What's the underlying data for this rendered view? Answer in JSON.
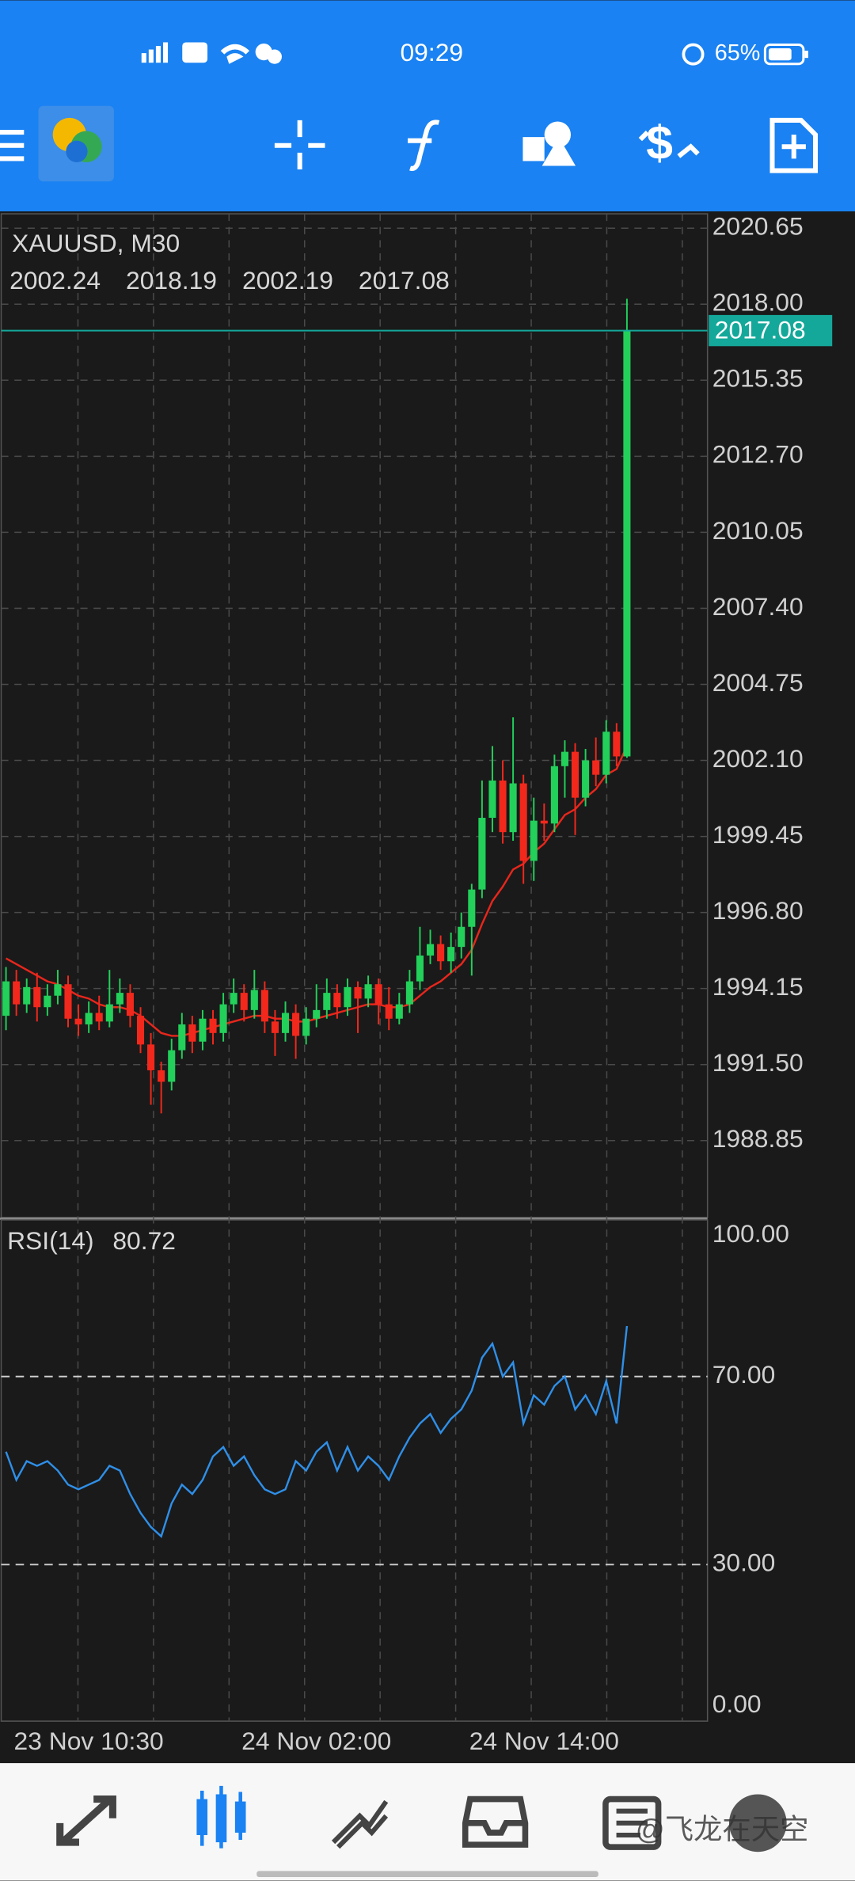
{
  "status_bar": {
    "time": "09:29",
    "battery": "65%"
  },
  "watermark": "@飞龙在天空",
  "chart_data": [
    {
      "type": "candlestick",
      "title": "XAUUSD, M30",
      "categories": [
        null,
        null,
        null,
        null,
        null,
        null,
        null,
        null,
        "23 Nov 10:30",
        null,
        null,
        null,
        null,
        null,
        null,
        null,
        null,
        null,
        null,
        null,
        null,
        null,
        null,
        null,
        null,
        null,
        null,
        null,
        null,
        null,
        "24 Nov 02:00",
        null,
        null,
        null,
        null,
        null,
        null,
        null,
        null,
        null,
        null,
        null,
        null,
        null,
        null,
        null,
        null,
        null,
        null,
        null,
        null,
        null,
        "24 Nov 14:00",
        null,
        null,
        null,
        null,
        null,
        null,
        null,
        null
      ],
      "open": [
        1993.2,
        1994.4,
        1993.6,
        1994.2,
        1993.5,
        1993.9,
        1994.3,
        1993.1,
        1992.9,
        1993.3,
        1993.0,
        1993.6,
        1994.0,
        1993.2,
        1992.2,
        1991.3,
        1990.9,
        1992.0,
        1992.9,
        1992.3,
        1993.1,
        1992.6,
        1993.6,
        1994.0,
        1993.4,
        1994.1,
        1993.0,
        1992.6,
        1993.3,
        1992.5,
        1993.1,
        1993.4,
        1994.0,
        1993.5,
        1994.2,
        1993.8,
        1994.3,
        1993.6,
        1993.1,
        1993.6,
        1994.4,
        1995.3,
        1995.7,
        1995.1,
        1995.6,
        1996.3,
        1997.6,
        2000.1,
        2001.4,
        1999.6,
        2001.3,
        1998.6,
        2000.0,
        1999.9,
        2001.9,
        2002.4,
        2000.8,
        2002.1,
        2001.6,
        2003.1,
        2002.24
      ],
      "high": [
        1994.9,
        1994.8,
        1994.5,
        1994.7,
        1994.3,
        1994.8,
        1994.6,
        1993.6,
        1993.7,
        1993.9,
        1994.8,
        1994.5,
        1994.3,
        1993.5,
        1992.6,
        1991.6,
        1992.4,
        1993.3,
        1993.2,
        1993.4,
        1993.4,
        1994.0,
        1994.5,
        1994.3,
        1994.8,
        1994.4,
        1993.4,
        1993.7,
        1993.6,
        1993.5,
        1994.3,
        1994.5,
        1994.3,
        1994.5,
        1994.4,
        1994.6,
        1994.5,
        1994.2,
        1994.0,
        1994.8,
        1996.3,
        1996.2,
        1996.0,
        1996.1,
        1996.8,
        1997.8,
        2001.4,
        2002.6,
        2002.1,
        2003.6,
        2001.6,
        2000.8,
        2000.6,
        2002.3,
        2002.8,
        2002.7,
        2002.5,
        2002.9,
        2003.5,
        2003.4,
        2018.19
      ],
      "low": [
        1992.7,
        1993.2,
        1993.3,
        1993.0,
        1993.2,
        1993.6,
        1992.8,
        1992.5,
        1992.6,
        1992.7,
        1992.8,
        1993.3,
        1992.8,
        1991.9,
        1990.1,
        1989.8,
        1990.6,
        1991.7,
        1991.9,
        1992.0,
        1992.2,
        1992.3,
        1993.3,
        1993.0,
        1993.1,
        1992.6,
        1991.8,
        1992.3,
        1991.7,
        1992.2,
        1992.8,
        1993.1,
        1993.1,
        1993.2,
        1992.6,
        1993.5,
        1992.9,
        1992.7,
        1992.9,
        1993.3,
        1994.1,
        1995.0,
        1994.8,
        1994.7,
        1995.2,
        1994.6,
        1997.3,
        1999.6,
        1999.2,
        1999.3,
        1997.8,
        1997.9,
        1999.3,
        1999.6,
        2000.8,
        1999.5,
        2000.5,
        2001.2,
        2001.3,
        2001.9,
        2002.19
      ],
      "close": [
        1994.4,
        1993.6,
        1994.2,
        1993.5,
        1993.9,
        1994.3,
        1993.1,
        1992.9,
        1993.3,
        1993.0,
        1993.6,
        1994.0,
        1993.2,
        1992.2,
        1991.3,
        1990.9,
        1992.0,
        1992.9,
        1992.3,
        1993.1,
        1992.6,
        1993.6,
        1994.0,
        1993.4,
        1994.1,
        1993.0,
        1992.6,
        1993.3,
        1992.5,
        1993.1,
        1993.4,
        1994.0,
        1993.5,
        1994.2,
        1993.8,
        1994.3,
        1993.6,
        1993.1,
        1993.6,
        1994.4,
        1995.3,
        1995.7,
        1995.1,
        1995.6,
        1996.3,
        1997.6,
        2000.1,
        2001.4,
        1999.6,
        2001.3,
        1998.6,
        2000.0,
        1999.9,
        2001.9,
        2002.4,
        2000.8,
        2002.1,
        2001.6,
        2003.1,
        2002.24,
        2017.08
      ],
      "ma": [
        1995.2,
        1995.0,
        1994.8,
        1994.6,
        1994.4,
        1994.3,
        1994.1,
        1993.9,
        1993.8,
        1993.6,
        1993.5,
        1993.5,
        1993.4,
        1993.2,
        1992.9,
        1992.6,
        1992.5,
        1992.5,
        1992.6,
        1992.7,
        1992.8,
        1992.9,
        1993.0,
        1993.1,
        1993.2,
        1993.2,
        1993.1,
        1993.1,
        1993.0,
        1993.0,
        1993.1,
        1993.2,
        1993.3,
        1993.4,
        1993.5,
        1993.6,
        1993.6,
        1993.5,
        1993.5,
        1993.6,
        1993.9,
        1994.2,
        1994.4,
        1994.7,
        1995.0,
        1995.5,
        1996.4,
        1997.2,
        1997.7,
        1998.3,
        1998.5,
        1998.9,
        1999.2,
        1999.7,
        2000.2,
        2000.4,
        2000.8,
        2001.1,
        2001.6,
        2001.8,
        2002.6
      ],
      "up_color": "#22d05a",
      "down_color": "#f2281c",
      "ma_color": "#e8261c",
      "price_line_color": "#14a89a",
      "ylim": [
        1986.17,
        2021.15
      ],
      "yticks": [
        2020.65,
        {
          "value": 2018,
          "label": "2018.00"
        },
        2015.35,
        {
          "value": 2012.7,
          "label": "2012.70"
        },
        2010.05,
        {
          "value": 2007.4,
          "label": "2007.40"
        },
        2004.75,
        {
          "value": 2002.1,
          "label": "2002.10"
        },
        1999.45,
        {
          "value": 1996.8,
          "label": "1996.80"
        },
        1994.15,
        {
          "value": 1991.5,
          "label": "1991.50"
        },
        1988.85
      ],
      "grid": true
    },
    {
      "type": "line",
      "title": "RSI(14)",
      "values": [
        54,
        48,
        52,
        51,
        52,
        50,
        47,
        46,
        47,
        48,
        51,
        50,
        45,
        41,
        38,
        36,
        43,
        47,
        45,
        48,
        53,
        55,
        51,
        53,
        49,
        46,
        45,
        46,
        52,
        50,
        54,
        56,
        50,
        55,
        50,
        53,
        51,
        48,
        53,
        57,
        60,
        62,
        58,
        61,
        63,
        67,
        74,
        77,
        70,
        73,
        60,
        66,
        64,
        68,
        70,
        63,
        66,
        62,
        69,
        60,
        80.72
      ],
      "color": "#2f8fe8",
      "ylim": [
        -3.3,
        103.3
      ],
      "yticks": [
        {
          "value": 100,
          "label": "100.00"
        },
        {
          "value": 70,
          "label": "70.00"
        },
        {
          "value": 30,
          "label": "30.00"
        },
        {
          "value": 0,
          "label": "0.00"
        }
      ],
      "levels": [
        70,
        30
      ]
    }
  ]
}
